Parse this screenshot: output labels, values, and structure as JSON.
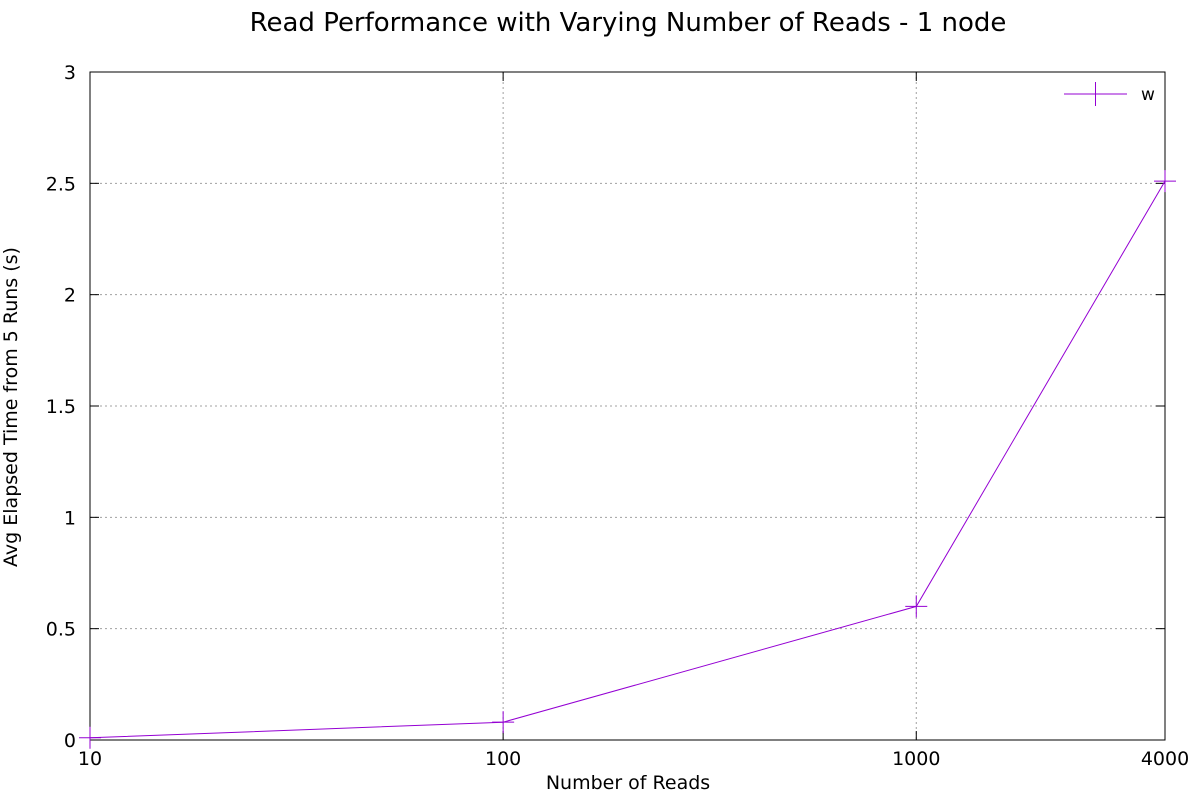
{
  "chart_data": {
    "type": "line",
    "title": "Read Performance with Varying Number of Reads - 1 node",
    "xlabel": "Number of Reads",
    "ylabel": "Avg Elapsed Time from 5 Runs (s)",
    "x_scale": "log",
    "x_ticks": [
      "10",
      "100",
      "1000",
      "4000"
    ],
    "x_tick_values": [
      10,
      100,
      1000,
      4000
    ],
    "y_ticks": [
      "0",
      "0.5",
      "1",
      "1.5",
      "2",
      "2.5",
      "3"
    ],
    "y_tick_values": [
      0,
      0.5,
      1,
      1.5,
      2,
      2.5,
      3
    ],
    "xlim": [
      10,
      4000
    ],
    "ylim": [
      0,
      3
    ],
    "grid": true,
    "legend_position": "top-right",
    "series": [
      {
        "name": "w",
        "color": "#9400d3",
        "marker": "plus",
        "x": [
          10,
          100,
          1000,
          4000
        ],
        "y": [
          0.01,
          0.08,
          0.6,
          2.51
        ]
      }
    ]
  }
}
